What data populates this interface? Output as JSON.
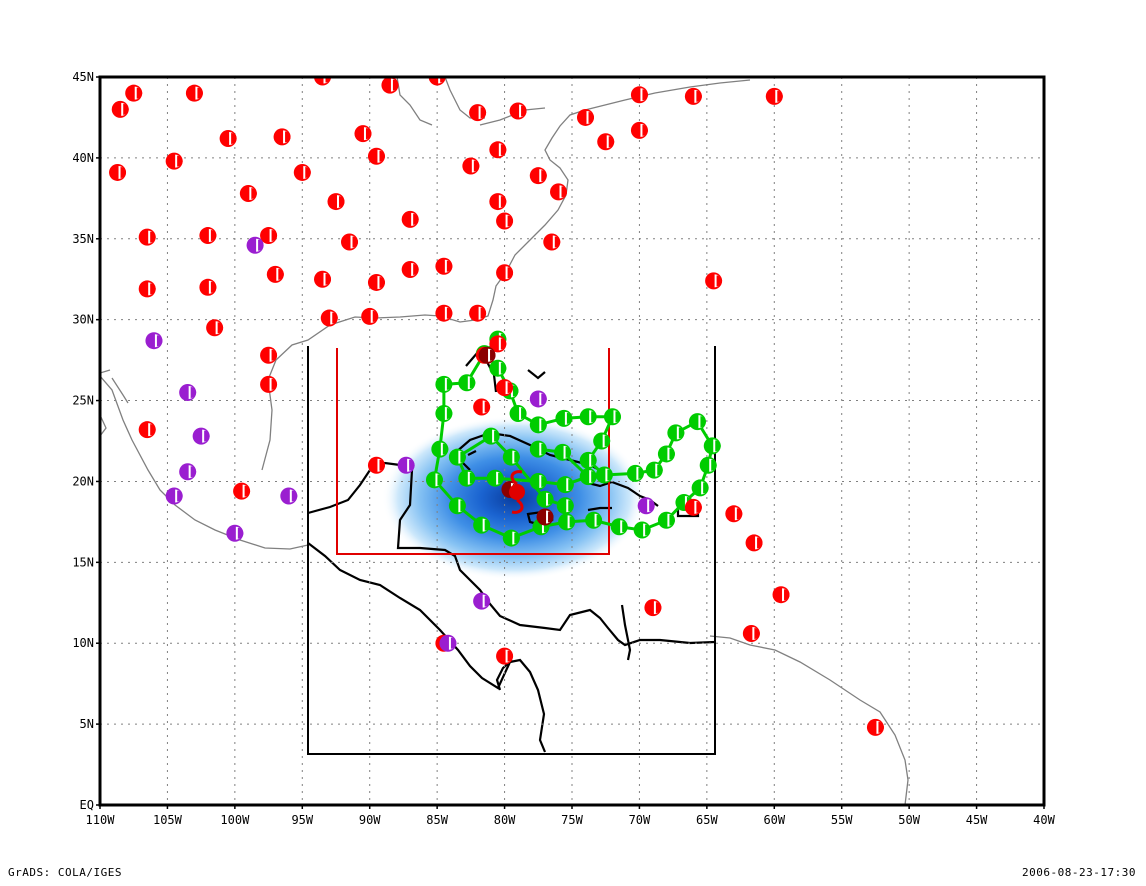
{
  "footer": {
    "left": "GrADS: COLA/IGES",
    "right": "2006-08-23-17:30"
  },
  "axes": {
    "x_ticks": [
      "110W",
      "105W",
      "100W",
      "95W",
      "90W",
      "85W",
      "80W",
      "75W",
      "70W",
      "65W",
      "60W",
      "55W",
      "50W",
      "45W",
      "40W"
    ],
    "y_ticks": [
      "EQ",
      "5N",
      "10N",
      "15N",
      "20N",
      "25N",
      "30N",
      "35N",
      "40N",
      "45N"
    ],
    "lon_range": [
      -110,
      -40
    ],
    "lat_range": [
      0,
      45
    ]
  },
  "colors": {
    "red_station": "#ff0000",
    "purple_station": "#9a1ed0",
    "green_track": "#00cc00",
    "black_box": "#000000",
    "red_box": "#e00000",
    "gray_coast": "#808080",
    "blue_shade": "#1a6fd8"
  },
  "icons": {
    "station": "half-filled-circle-icon",
    "storm": "hurricane-symbol-icon"
  },
  "features": {
    "outer_box": {
      "lon": [
        -94.8,
        -64.5
      ],
      "lat": [
        3.3,
        28.5
      ]
    },
    "inner_box": {
      "lon": [
        -92.5,
        -72.5
      ],
      "lat": [
        15.6,
        28.3
      ]
    },
    "storm_center": {
      "lon": -79.5,
      "lat": 19.5
    },
    "rain_center": {
      "lon": -79,
      "lat": 19.5
    }
  },
  "stations": {
    "red": [
      [
        -108.5,
        43
      ],
      [
        -107.5,
        44
      ],
      [
        -103,
        44
      ],
      [
        -93.5,
        45
      ],
      [
        -88.5,
        44.5
      ],
      [
        -85,
        45
      ],
      [
        -82,
        42.8
      ],
      [
        -79,
        42.9
      ],
      [
        -74,
        42.5
      ],
      [
        -70,
        43.9
      ],
      [
        -66,
        43.8
      ],
      [
        -60,
        43.8
      ],
      [
        -108.7,
        39.1
      ],
      [
        -104.5,
        39.8
      ],
      [
        -100.5,
        41.2
      ],
      [
        -96.5,
        41.3
      ],
      [
        -95,
        39.1
      ],
      [
        -90.5,
        41.5
      ],
      [
        -89.5,
        40.1
      ],
      [
        -82.5,
        39.5
      ],
      [
        -80.5,
        40.5
      ],
      [
        -77.5,
        38.9
      ],
      [
        -76,
        37.9
      ],
      [
        -72.5,
        41
      ],
      [
        -70,
        41.7
      ],
      [
        -99,
        37.8
      ],
      [
        -92.5,
        37.3
      ],
      [
        -87,
        36.2
      ],
      [
        -80.5,
        37.3
      ],
      [
        -80,
        36.1
      ],
      [
        -106.5,
        35.1
      ],
      [
        -102,
        35.2
      ],
      [
        -97.5,
        35.2
      ],
      [
        -91.5,
        34.8
      ],
      [
        -76.5,
        34.8
      ],
      [
        -106.5,
        31.9
      ],
      [
        -102,
        32
      ],
      [
        -97,
        32.8
      ],
      [
        -93.5,
        32.5
      ],
      [
        -89.5,
        32.3
      ],
      [
        -87,
        33.1
      ],
      [
        -84.5,
        33.3
      ],
      [
        -80,
        32.9
      ],
      [
        -64.5,
        32.4
      ],
      [
        -101.5,
        29.5
      ],
      [
        -93,
        30.1
      ],
      [
        -90,
        30.2
      ],
      [
        -84.5,
        30.4
      ],
      [
        -82,
        30.4
      ],
      [
        -80.5,
        28.5
      ],
      [
        -81.5,
        27.8
      ],
      [
        -97.5,
        27.8
      ],
      [
        -97.5,
        26
      ],
      [
        -80,
        25.8
      ],
      [
        -81.7,
        24.6
      ],
      [
        -106.5,
        23.2
      ],
      [
        -99.5,
        19.4
      ],
      [
        -89.5,
        21
      ],
      [
        -66,
        18.4
      ],
      [
        -63,
        18
      ],
      [
        -61.5,
        16.2
      ],
      [
        -59.5,
        13
      ],
      [
        -61.7,
        10.6
      ],
      [
        -69,
        12.2
      ],
      [
        -52.5,
        4.8
      ],
      [
        -80,
        9.2
      ],
      [
        -84.5,
        10
      ]
    ],
    "purple": [
      [
        -98.5,
        34.6
      ],
      [
        -106,
        28.7
      ],
      [
        -103.5,
        25.5
      ],
      [
        -102.5,
        22.8
      ],
      [
        -103.5,
        20.6
      ],
      [
        -104.5,
        19.1
      ],
      [
        -100,
        16.8
      ],
      [
        -96,
        19.1
      ],
      [
        -87.3,
        21
      ],
      [
        -77.5,
        25.1
      ],
      [
        -81.7,
        12.6
      ],
      [
        -84.2,
        10
      ],
      [
        -69.5,
        18.5
      ]
    ],
    "dark": [
      [
        -79.6,
        19.5
      ],
      [
        -77,
        17.8
      ],
      [
        -81.3,
        27.8
      ]
    ]
  },
  "track": [
    [
      -80.5,
      28.8
    ],
    [
      -81.5,
      27.9
    ],
    [
      -82.8,
      26.1
    ],
    [
      -84.5,
      26
    ],
    [
      -84.5,
      24.2
    ],
    [
      -84.8,
      22
    ],
    [
      -85.2,
      20.1
    ],
    [
      -83.5,
      18.5
    ],
    [
      -81.7,
      17.3
    ],
    [
      -79.5,
      16.5
    ],
    [
      -77.3,
      17.2
    ],
    [
      -75.4,
      17.5
    ],
    [
      -73.4,
      17.6
    ],
    [
      -71.5,
      17.2
    ],
    [
      -69.8,
      17
    ],
    [
      -68,
      17.6
    ],
    [
      -66.7,
      18.7
    ],
    [
      -65.5,
      19.6
    ],
    [
      -64.9,
      21
    ],
    [
      -64.6,
      22.2
    ],
    [
      -65.7,
      23.7
    ],
    [
      -67.3,
      23
    ],
    [
      -68,
      21.7
    ],
    [
      -68.9,
      20.7
    ],
    [
      -70.3,
      20.5
    ],
    [
      -72.6,
      20.4
    ],
    [
      -73.8,
      21.3
    ],
    [
      -72.8,
      22.5
    ],
    [
      -72,
      24
    ],
    [
      -73.8,
      24
    ],
    [
      -75.6,
      23.9
    ],
    [
      -77.5,
      23.5
    ],
    [
      -79,
      24.2
    ],
    [
      -79.6,
      25.6
    ],
    [
      -80.5,
      27
    ]
  ],
  "track_extra": [
    [
      -77.5,
      22
    ],
    [
      -75.7,
      21.8
    ],
    [
      -73.8,
      20.3
    ],
    [
      -75.5,
      19.8
    ],
    [
      -77.5,
      20
    ],
    [
      -80.7,
      20.2
    ],
    [
      -82.8,
      20.2
    ],
    [
      -83.5,
      21.5
    ],
    [
      -81,
      22.8
    ],
    [
      -79.5,
      21.5
    ],
    [
      -77,
      18.9
    ],
    [
      -75.5,
      18.5
    ]
  ]
}
